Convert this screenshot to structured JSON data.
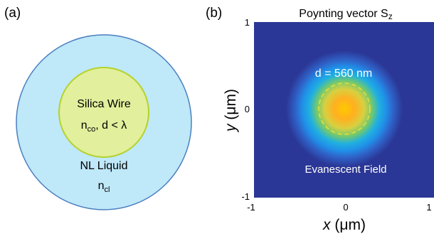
{
  "panel_a": {
    "label": "(a)",
    "core": {
      "title": "Silica Wire",
      "index_base": "n",
      "index_sub": "co",
      "cond": ", d < λ"
    },
    "cladding": {
      "title": "NL Liquid",
      "index_base": "n",
      "index_sub": "cl"
    },
    "colors": {
      "cladding_fill": "#bfe8f8",
      "cladding_stroke": "#4a7fc0",
      "core_fill": "#e2ef9c",
      "core_stroke": "#b5d22a"
    }
  },
  "panel_b": {
    "label": "(b)",
    "title_main": "Poynting vector S",
    "title_sub": "z",
    "annotation_d": "d = 560 nm",
    "annotation_field": "Evanescent Field",
    "x_label_var": "x",
    "x_label_unit": " (μm)",
    "y_label_var": "y",
    "y_label_unit": " (μm)",
    "x_ticks": [
      "-1",
      "0",
      "1"
    ],
    "y_ticks": [
      "1",
      "0",
      "-1"
    ],
    "colors": {
      "background": "#2b3796",
      "hot": "#ffb400",
      "dashed": "#e0e040"
    }
  }
}
